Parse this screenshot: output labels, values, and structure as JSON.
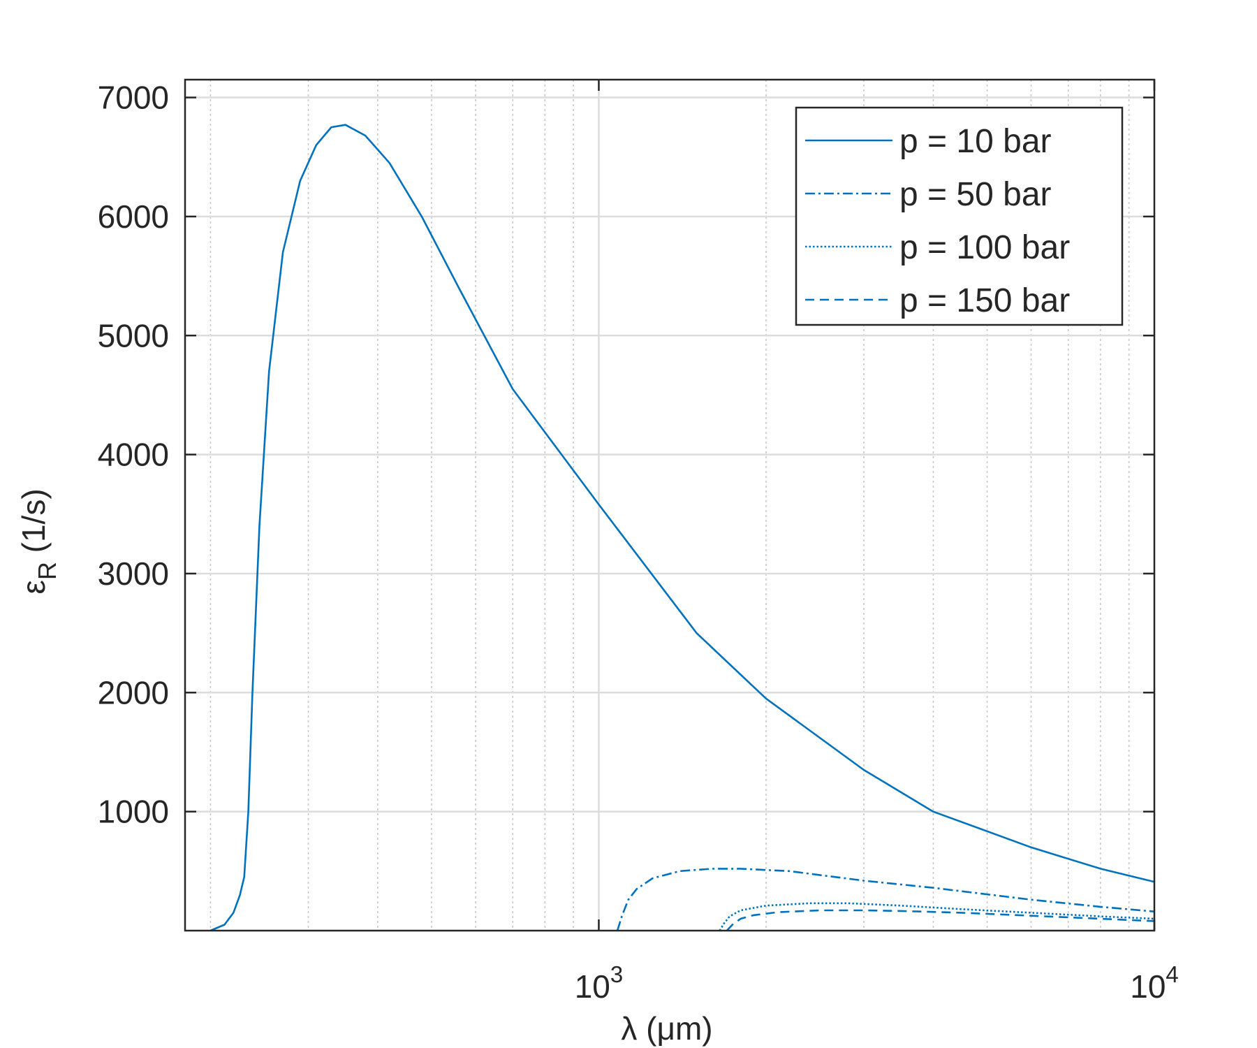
{
  "chart_data": {
    "type": "line",
    "title": "",
    "xlabel": "λ (μm)",
    "ylabel": "ε_R (1/s)",
    "xscale": "log",
    "xlim": [
      180,
      10000
    ],
    "ylim": [
      0,
      7150
    ],
    "grid": true,
    "minor_grid": true,
    "legend_position": "top-right",
    "color": "#0072bd",
    "x_ticks": [
      {
        "value": 1000,
        "base": "10",
        "exp": "3"
      },
      {
        "value": 10000,
        "base": "10",
        "exp": "4"
      }
    ],
    "y_ticks": [
      1000,
      2000,
      3000,
      4000,
      5000,
      6000,
      7000
    ],
    "series": [
      {
        "name": "p = 10 bar",
        "style": "solid",
        "x": [
          200,
          212,
          220,
          226,
          230,
          234,
          238,
          245,
          255,
          270,
          290,
          310,
          330,
          350,
          380,
          420,
          480,
          560,
          700,
          1000,
          1500,
          2000,
          3000,
          4000,
          6000,
          8000,
          10000
        ],
        "y": [
          0,
          50,
          150,
          300,
          450,
          1000,
          2000,
          3400,
          4700,
          5700,
          6300,
          6600,
          6750,
          6770,
          6680,
          6450,
          6000,
          5400,
          4550,
          3580,
          2500,
          1950,
          1350,
          1000,
          700,
          520,
          410
        ]
      },
      {
        "name": "p = 50 bar",
        "style": "dashdot",
        "x": [
          1080,
          1100,
          1130,
          1170,
          1250,
          1400,
          1600,
          1800,
          2200,
          3000,
          4000,
          6000,
          8000,
          10000
        ],
        "y": [
          0,
          120,
          260,
          350,
          440,
          500,
          520,
          520,
          500,
          420,
          360,
          260,
          200,
          160
        ]
      },
      {
        "name": "p = 100 bar",
        "style": "dotted",
        "x": [
          1650,
          1680,
          1720,
          1800,
          2000,
          2400,
          2800,
          3500,
          4500,
          6000,
          8000,
          10000
        ],
        "y": [
          0,
          60,
          120,
          170,
          210,
          230,
          230,
          210,
          180,
          150,
          120,
          100
        ]
      },
      {
        "name": "p = 150 bar",
        "style": "dashed",
        "x": [
          1700,
          1740,
          1800,
          1900,
          2100,
          2500,
          3000,
          3500,
          4500,
          6000,
          8000,
          10000
        ],
        "y": [
          0,
          50,
          100,
          130,
          155,
          170,
          170,
          165,
          150,
          125,
          100,
          80
        ]
      }
    ]
  }
}
